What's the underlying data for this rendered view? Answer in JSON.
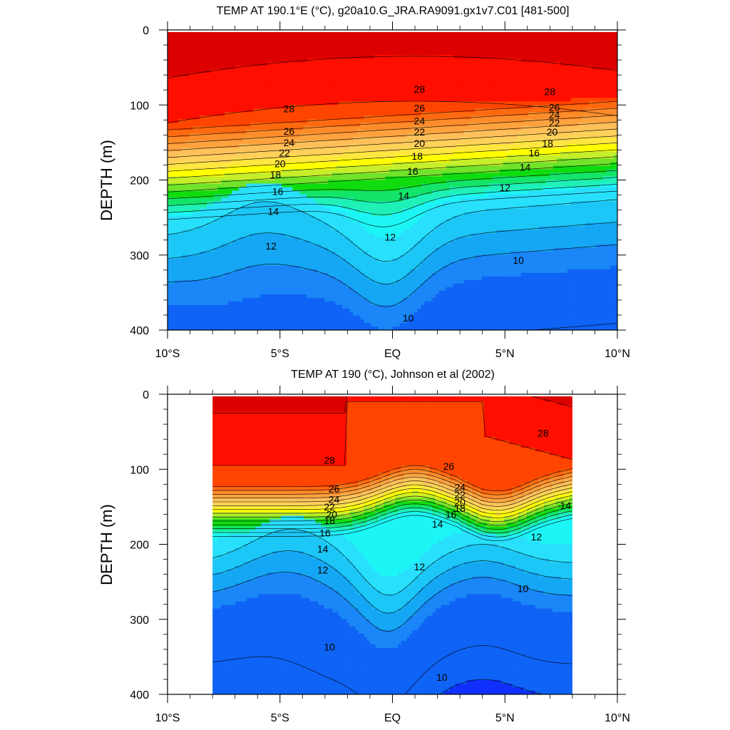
{
  "chart_data": [
    {
      "type": "contour",
      "title": "TEMP AT 190.1°E (°C), g20a10.G_JRA.RA9091.gx1v7.C01 [481-500]",
      "ylabel": "DEPTH (m)",
      "xlabel": "",
      "xlim": [
        -10,
        10
      ],
      "ylim": [
        0,
        400
      ],
      "y_inverted": true,
      "data_extent_lat": [
        -10,
        10
      ],
      "x_ticks": [
        {
          "value": -10,
          "label": "10°S"
        },
        {
          "value": -5,
          "label": "5°S"
        },
        {
          "value": 0,
          "label": "EQ"
        },
        {
          "value": 5,
          "label": "5°N"
        },
        {
          "value": 10,
          "label": "10°N"
        }
      ],
      "y_ticks": [
        {
          "value": 0,
          "label": "0"
        },
        {
          "value": 100,
          "label": "100"
        },
        {
          "value": 200,
          "label": "200"
        },
        {
          "value": 300,
          "label": "300"
        },
        {
          "value": 400,
          "label": "400"
        }
      ],
      "contour_interval": 1,
      "labeled_contours": [
        {
          "value": "28",
          "lat": -4.6,
          "depth": 105
        },
        {
          "value": "26",
          "lat": -4.6,
          "depth": 135
        },
        {
          "value": "24",
          "lat": -4.6,
          "depth": 150
        },
        {
          "value": "22",
          "lat": -4.8,
          "depth": 164
        },
        {
          "value": "20",
          "lat": -5.0,
          "depth": 178
        },
        {
          "value": "18",
          "lat": -5.2,
          "depth": 193
        },
        {
          "value": "16",
          "lat": -5.1,
          "depth": 215
        },
        {
          "value": "14",
          "lat": -5.3,
          "depth": 242
        },
        {
          "value": "12",
          "lat": -5.4,
          "depth": 288
        },
        {
          "value": "28",
          "lat": 1.2,
          "depth": 79
        },
        {
          "value": "26",
          "lat": 1.2,
          "depth": 104
        },
        {
          "value": "24",
          "lat": 1.2,
          "depth": 121
        },
        {
          "value": "22",
          "lat": 1.2,
          "depth": 136
        },
        {
          "value": "20",
          "lat": 1.2,
          "depth": 151
        },
        {
          "value": "18",
          "lat": 1.1,
          "depth": 168
        },
        {
          "value": "16",
          "lat": 0.9,
          "depth": 188
        },
        {
          "value": "14",
          "lat": 0.5,
          "depth": 221
        },
        {
          "value": "12",
          "lat": -0.1,
          "depth": 276
        },
        {
          "value": "10",
          "lat": 0.7,
          "depth": 384
        },
        {
          "value": "28",
          "lat": 7.0,
          "depth": 82
        },
        {
          "value": "26",
          "lat": 7.2,
          "depth": 103
        },
        {
          "value": "24",
          "lat": 7.2,
          "depth": 113
        },
        {
          "value": "22",
          "lat": 7.2,
          "depth": 124
        },
        {
          "value": "20",
          "lat": 7.1,
          "depth": 136
        },
        {
          "value": "18",
          "lat": 6.9,
          "depth": 151
        },
        {
          "value": "16",
          "lat": 6.3,
          "depth": 164
        },
        {
          "value": "14",
          "lat": 5.9,
          "depth": 183
        },
        {
          "value": "12",
          "lat": 5.0,
          "depth": 210
        },
        {
          "value": "10",
          "lat": 5.6,
          "depth": 307
        }
      ]
    },
    {
      "type": "contour",
      "title": "TEMP AT 190 (°C), Johnson et al (2002)",
      "ylabel": "DEPTH (m)",
      "xlabel": "",
      "xlim": [
        -10,
        10
      ],
      "ylim": [
        0,
        400
      ],
      "y_inverted": true,
      "data_extent_lat": [
        -8,
        8
      ],
      "x_ticks": [
        {
          "value": -10,
          "label": "10°S"
        },
        {
          "value": -5,
          "label": "5°S"
        },
        {
          "value": 0,
          "label": "EQ"
        },
        {
          "value": 5,
          "label": "5°N"
        },
        {
          "value": 10,
          "label": "10°N"
        }
      ],
      "y_ticks": [
        {
          "value": 0,
          "label": "0"
        },
        {
          "value": 100,
          "label": "100"
        },
        {
          "value": 200,
          "label": "200"
        },
        {
          "value": 300,
          "label": "300"
        },
        {
          "value": 400,
          "label": "400"
        }
      ],
      "contour_interval": 1,
      "labeled_contours": [
        {
          "value": "28",
          "lat": -2.8,
          "depth": 88
        },
        {
          "value": "26",
          "lat": -2.6,
          "depth": 126
        },
        {
          "value": "24",
          "lat": -2.6,
          "depth": 140
        },
        {
          "value": "22",
          "lat": -2.8,
          "depth": 150
        },
        {
          "value": "20",
          "lat": -2.7,
          "depth": 160
        },
        {
          "value": "18",
          "lat": -2.8,
          "depth": 168
        },
        {
          "value": "16",
          "lat": -3.0,
          "depth": 185
        },
        {
          "value": "14",
          "lat": -3.1,
          "depth": 206
        },
        {
          "value": "12",
          "lat": -3.1,
          "depth": 234
        },
        {
          "value": "10",
          "lat": -2.8,
          "depth": 337
        },
        {
          "value": "26",
          "lat": 2.5,
          "depth": 96
        },
        {
          "value": "24",
          "lat": 3.0,
          "depth": 124
        },
        {
          "value": "22",
          "lat": 3.0,
          "depth": 134
        },
        {
          "value": "20",
          "lat": 3.0,
          "depth": 144
        },
        {
          "value": "18",
          "lat": 3.0,
          "depth": 152
        },
        {
          "value": "16",
          "lat": 2.6,
          "depth": 160
        },
        {
          "value": "14",
          "lat": 2.0,
          "depth": 173
        },
        {
          "value": "12",
          "lat": 1.2,
          "depth": 230
        },
        {
          "value": "10",
          "lat": 2.2,
          "depth": 377
        },
        {
          "value": "28",
          "lat": 6.7,
          "depth": 52
        },
        {
          "value": "14",
          "lat": 7.7,
          "depth": 148
        },
        {
          "value": "12",
          "lat": 6.4,
          "depth": 190
        },
        {
          "value": "10",
          "lat": 5.8,
          "depth": 259
        }
      ]
    }
  ]
}
